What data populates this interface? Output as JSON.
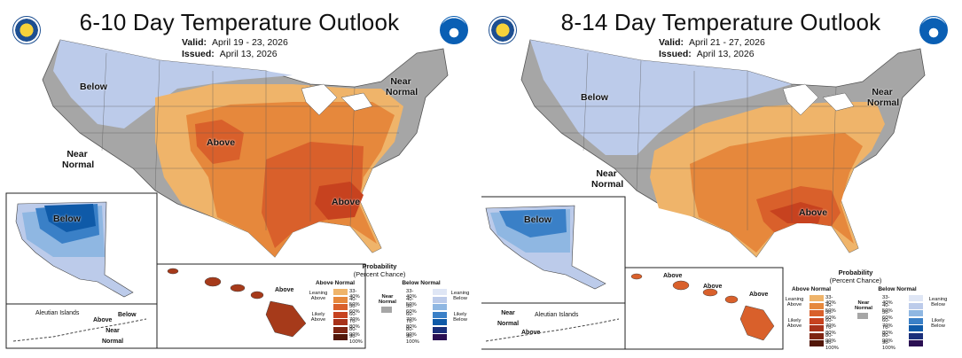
{
  "colors": {
    "below_light": "#bccbea",
    "below_mid": "#8fb7e2",
    "below_dark": "#3a80c7",
    "below_darker": "#0f5aa8",
    "near_normal": "#a6a6a6",
    "above_33": "#efb46a",
    "above_40": "#e6883c",
    "above_50": "#d9602b",
    "above_60": "#c7421f"
  },
  "panels": [
    {
      "title": "6-10 Day Temperature Outlook",
      "valid_label": "Valid:",
      "valid_value": "April 19 - 23, 2026",
      "issued_label": "Issued:",
      "issued_value": "April 13, 2026",
      "labels": {
        "below_main": "Below",
        "near_normal_west": "Near Normal",
        "near_normal_ne": "Near Normal",
        "above_1": "Above",
        "above_2": "Above",
        "alaska_below": "Below",
        "aleutian_islands": "Aleutian Islands",
        "aleutian_above": "Above",
        "aleutian_below": "Below",
        "aleutian_near": "Near Normal",
        "hawaii_above": "Above"
      },
      "legend": {
        "title": "Probability",
        "subtitle": "(Percent Chance)",
        "above_header": "Above Normal",
        "below_header": "Below Normal",
        "leaning_above": "Leaning Above",
        "likely_above": "Likely Above",
        "leaning_below": "Leaning Below",
        "likely_below": "Likely Below",
        "near_normal": "Near Normal",
        "ranges": [
          "33-40%",
          "40-50%",
          "50-60%",
          "60-70%",
          "70-80%",
          "80-90%",
          "90-100%"
        ]
      }
    },
    {
      "title": "8-14 Day Temperature Outlook",
      "valid_label": "Valid:",
      "valid_value": "April 21 - 27, 2026",
      "issued_label": "Issued:",
      "issued_value": "April 13, 2026",
      "labels": {
        "below_main": "Below",
        "near_normal_west": "Near Normal",
        "near_normal_ne": "Near Normal",
        "above_1": "Above",
        "alaska_below": "Below",
        "aleutian_islands": "Aleutian Islands",
        "aleutian_above": "Above",
        "aleutian_near": "Near Normal",
        "hawaii_above_1": "Above",
        "hawaii_above_2": "Above",
        "hawaii_above_3": "Above"
      },
      "legend": {
        "title": "Probability",
        "subtitle": "(Percent Chance)",
        "above_header": "Above Normal",
        "below_header": "Below Normal",
        "leaning_above": "Leaning Above",
        "likely_above": "Likely Above",
        "leaning_below": "Leaning Below",
        "likely_below": "Likely Below",
        "near_normal": "Near Normal",
        "ranges": [
          "33-40%",
          "40-50%",
          "50-60%",
          "60-70%",
          "70-80%",
          "80-90%",
          "90-100%"
        ]
      }
    }
  ]
}
